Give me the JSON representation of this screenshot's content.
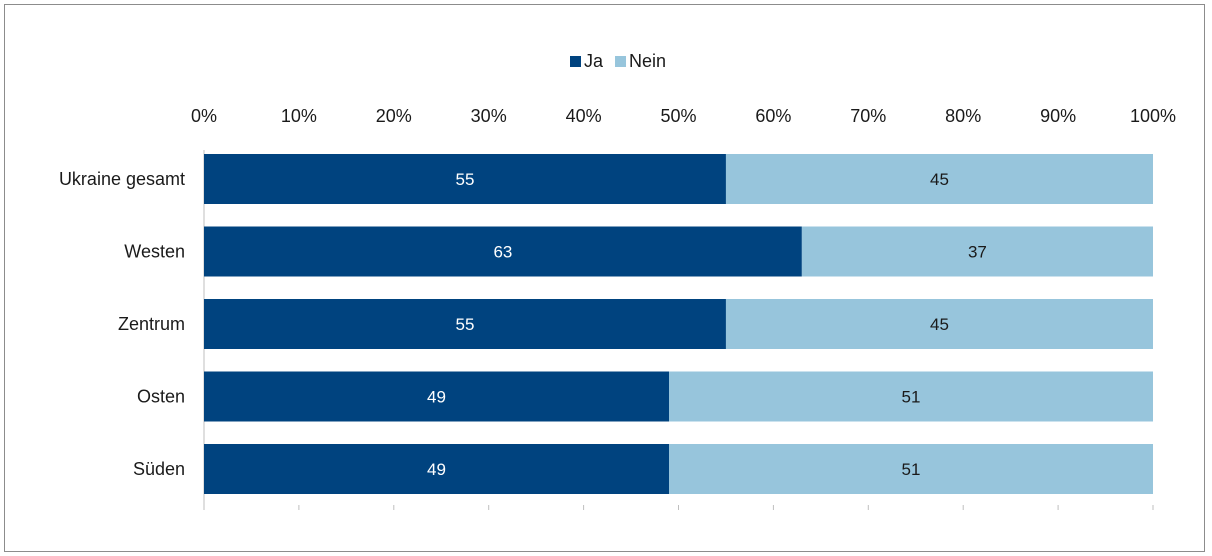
{
  "chart_data": {
    "type": "bar",
    "orientation": "horizontal",
    "stacked": true,
    "categories": [
      "Ukraine gesamt",
      "Westen",
      "Zentrum",
      "Osten",
      "Süden"
    ],
    "series": [
      {
        "name": "Ja",
        "values": [
          55,
          63,
          55,
          49,
          49
        ],
        "color": "#00437f"
      },
      {
        "name": "Nein",
        "values": [
          45,
          37,
          45,
          51,
          51
        ],
        "color": "#97c5dc"
      }
    ],
    "xlim": [
      0,
      100
    ],
    "xticks": [
      "0%",
      "10%",
      "20%",
      "30%",
      "40%",
      "50%",
      "60%",
      "70%",
      "80%",
      "90%",
      "100%"
    ],
    "legend_position": "top-center",
    "title": "",
    "xlabel": "",
    "ylabel": ""
  }
}
